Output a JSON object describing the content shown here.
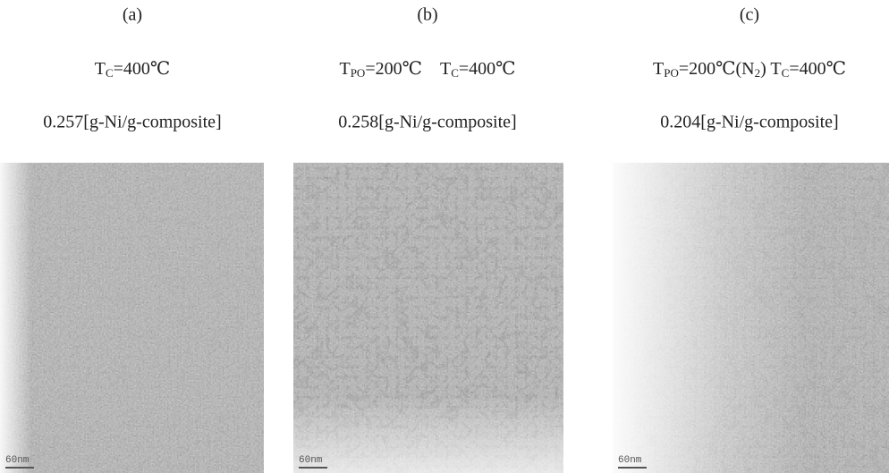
{
  "panels": [
    {
      "label": "(a)",
      "condition": [
        "T",
        "C",
        "=400℃"
      ],
      "loading": "0.257[g-Ni/g-composite]",
      "scale": "60nm"
    },
    {
      "label": "(b)",
      "condition": [
        "T",
        "PO",
        "=200℃ T",
        "C",
        "=400℃"
      ],
      "loading": "0.258[g-Ni/g-composite]",
      "scale": "60nm"
    },
    {
      "label": "(c)",
      "condition": [
        "T",
        "PO",
        "=200℃(N",
        "2",
        ") T",
        "C",
        "=400℃"
      ],
      "loading": "0.204[g-Ni/g-composite]",
      "scale": "60nm"
    }
  ]
}
